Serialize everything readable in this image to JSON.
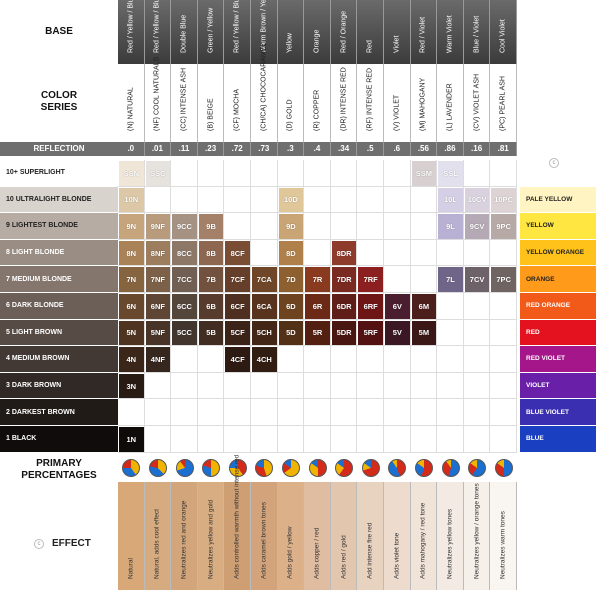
{
  "labels": {
    "base": "BASE",
    "color_series": "COLOR\nSERIES",
    "reflection": "REFLECTION",
    "primary": "PRIMARY\nPERCENTAGES",
    "effect": "EFFECT"
  },
  "bases": [
    "Red / Yellow / Blue",
    "Red / Yellow / Blue + Blue",
    "Double Blue",
    "Green / Yellow",
    "Red / Yellow / Blue",
    "Warm Brown / Yellow",
    "Yellow",
    "Orange",
    "Red / Orange",
    "Red",
    "Violet",
    "Red / Violet",
    "Warm Violet",
    "Blue / Violet",
    "Cool Violet"
  ],
  "series": [
    "(N) NATURAL",
    "(NF) COOL NATURALS",
    "(CC) INTENSE ASH",
    "(B) BEIGE",
    "(CF) MOCHA",
    "(CH/CA) CHOCOCARAMEL",
    "(D) GOLD",
    "(R) COPPER",
    "(DR) INTENSE RED",
    "(RF) INTENSE RED",
    "(V) VIOLET",
    "(M) MAHOGANY",
    "(L) LAVENDER",
    "(CV) VIOLET ASH",
    "(PC) PEARL ASH"
  ],
  "reflection": [
    ".0",
    ".01",
    ".11",
    ".23",
    ".72",
    ".73",
    ".3",
    ".4",
    ".34",
    ".5",
    ".6",
    ".56",
    ".86",
    ".16",
    ".81"
  ],
  "levels": [
    "10+ SUPERLIGHT",
    "10 ULTRALIGHT BLONDE",
    "9  LIGHTEST BLONDE",
    "8  LIGHT BLONDE",
    "7  MEDIUM BLONDE",
    "6  DARK BLONDE",
    "5  LIGHT BROWN",
    "4  MEDIUM BROWN",
    "3  DARK BROWN",
    "2  DARKEST BROWN",
    "1  BLACK"
  ],
  "level_colors": [
    "#ffffff",
    "#d9d3cd",
    "#b7aca3",
    "#9a8d83",
    "#84766d",
    "#6c5f57",
    "#574b45",
    "#433934",
    "#312925",
    "#211b18",
    "#0f0c0b"
  ],
  "undertones": [
    {
      "label": "PALE YELLOW",
      "color": "#fff4c2"
    },
    {
      "label": "YELLOW",
      "color": "#ffe640"
    },
    {
      "label": "YELLOW ORANGE",
      "color": "#ffc21a"
    },
    {
      "label": "ORANGE",
      "color": "#ff9a1a"
    },
    {
      "label": "RED ORANGE",
      "color": "#f25a1a"
    },
    {
      "label": "RED",
      "color": "#e3121e"
    },
    {
      "label": "RED VIOLET",
      "color": "#a5168a"
    },
    {
      "label": "VIOLET",
      "color": "#6a1fa8"
    },
    {
      "label": "BLUE VIOLET",
      "color": "#3a2fb0"
    },
    {
      "label": "BLUE",
      "color": "#1a3fc0"
    }
  ],
  "swatches": [
    {
      "row": 0,
      "col": 0,
      "label": "SSN",
      "color": "#efe6d7"
    },
    {
      "row": 0,
      "col": 1,
      "label": "SSC",
      "color": "#e6e2de"
    },
    {
      "row": 0,
      "col": 11,
      "label": "SSM",
      "color": "#d8cfd0"
    },
    {
      "row": 0,
      "col": 12,
      "label": "SSL",
      "color": "#e3e0ee"
    },
    {
      "row": 1,
      "col": 0,
      "label": "10N",
      "color": "#dcc7a6"
    },
    {
      "row": 1,
      "col": 6,
      "label": "10D",
      "color": "#e0c79a"
    },
    {
      "row": 1,
      "col": 12,
      "label": "10L",
      "color": "#d4cfe4"
    },
    {
      "row": 1,
      "col": 13,
      "label": "10CV",
      "color": "#d9d2de"
    },
    {
      "row": 1,
      "col": 14,
      "label": "10PC",
      "color": "#ddd3d4"
    },
    {
      "row": 2,
      "col": 0,
      "label": "9N",
      "color": "#c7a57c"
    },
    {
      "row": 2,
      "col": 1,
      "label": "9NF",
      "color": "#b79b7c"
    },
    {
      "row": 2,
      "col": 2,
      "label": "9CC",
      "color": "#a59283"
    },
    {
      "row": 2,
      "col": 3,
      "label": "9B",
      "color": "#a48068"
    },
    {
      "row": 2,
      "col": 6,
      "label": "9D",
      "color": "#c9a474"
    },
    {
      "row": 2,
      "col": 12,
      "label": "9L",
      "color": "#b9b1d4"
    },
    {
      "row": 2,
      "col": 13,
      "label": "9CV",
      "color": "#b4a9b4"
    },
    {
      "row": 2,
      "col": 14,
      "label": "9PC",
      "color": "#b7a9a6"
    },
    {
      "row": 3,
      "col": 0,
      "label": "8N",
      "color": "#a98257"
    },
    {
      "row": 3,
      "col": 1,
      "label": "8NF",
      "color": "#9c7d5e"
    },
    {
      "row": 3,
      "col": 2,
      "label": "8CC",
      "color": "#8d7868"
    },
    {
      "row": 3,
      "col": 3,
      "label": "8B",
      "color": "#8d6750"
    },
    {
      "row": 3,
      "col": 4,
      "label": "8CF",
      "color": "#7a4e35"
    },
    {
      "row": 3,
      "col": 6,
      "label": "8D",
      "color": "#b0804a"
    },
    {
      "row": 3,
      "col": 8,
      "label": "8DR",
      "color": "#8f3b2b"
    },
    {
      "row": 4,
      "col": 0,
      "label": "7N",
      "color": "#86643f"
    },
    {
      "row": 4,
      "col": 1,
      "label": "7NF",
      "color": "#7c6047"
    },
    {
      "row": 4,
      "col": 2,
      "label": "7CC",
      "color": "#705f52"
    },
    {
      "row": 4,
      "col": 3,
      "label": "7B",
      "color": "#72523e"
    },
    {
      "row": 4,
      "col": 4,
      "label": "7CF",
      "color": "#663f2a"
    },
    {
      "row": 4,
      "col": 5,
      "label": "7CA",
      "color": "#704628"
    },
    {
      "row": 4,
      "col": 6,
      "label": "7D",
      "color": "#8e5f2f"
    },
    {
      "row": 4,
      "col": 7,
      "label": "7R",
      "color": "#8a3a1e"
    },
    {
      "row": 4,
      "col": 8,
      "label": "7DR",
      "color": "#7b2a21"
    },
    {
      "row": 4,
      "col": 9,
      "label": "7RF",
      "color": "#8c1f1f"
    },
    {
      "row": 4,
      "col": 12,
      "label": "7L",
      "color": "#6f6589"
    },
    {
      "row": 4,
      "col": 13,
      "label": "7CV",
      "color": "#6e6269"
    },
    {
      "row": 4,
      "col": 14,
      "label": "7PC",
      "color": "#6f6462"
    },
    {
      "row": 5,
      "col": 0,
      "label": "6N",
      "color": "#68492d"
    },
    {
      "row": 5,
      "col": 1,
      "label": "6NF",
      "color": "#5f4634"
    },
    {
      "row": 5,
      "col": 2,
      "label": "6CC",
      "color": "#55463c"
    },
    {
      "row": 5,
      "col": 3,
      "label": "6B",
      "color": "#573c2d"
    },
    {
      "row": 5,
      "col": 4,
      "label": "6CF",
      "color": "#4f2f1f"
    },
    {
      "row": 5,
      "col": 5,
      "label": "6CA",
      "color": "#58341e"
    },
    {
      "row": 5,
      "col": 6,
      "label": "6D",
      "color": "#6d4320"
    },
    {
      "row": 5,
      "col": 7,
      "label": "6R",
      "color": "#6c2a16"
    },
    {
      "row": 5,
      "col": 8,
      "label": "6DR",
      "color": "#601e18"
    },
    {
      "row": 5,
      "col": 9,
      "label": "6RF",
      "color": "#6e1616"
    },
    {
      "row": 5,
      "col": 10,
      "label": "6V",
      "color": "#4a1e2e"
    },
    {
      "row": 5,
      "col": 11,
      "label": "6M",
      "color": "#4d1f1c"
    },
    {
      "row": 6,
      "col": 0,
      "label": "5N",
      "color": "#4f3521"
    },
    {
      "row": 6,
      "col": 1,
      "label": "5NF",
      "color": "#493528"
    },
    {
      "row": 6,
      "col": 2,
      "label": "5CC",
      "color": "#41352e"
    },
    {
      "row": 6,
      "col": 3,
      "label": "5B",
      "color": "#422d22"
    },
    {
      "row": 6,
      "col": 4,
      "label": "5CF",
      "color": "#3c2318"
    },
    {
      "row": 6,
      "col": 5,
      "label": "5CH",
      "color": "#432616"
    },
    {
      "row": 6,
      "col": 6,
      "label": "5D",
      "color": "#523117"
    },
    {
      "row": 6,
      "col": 7,
      "label": "5R",
      "color": "#521f11"
    },
    {
      "row": 6,
      "col": 8,
      "label": "5DR",
      "color": "#4a1612"
    },
    {
      "row": 6,
      "col": 9,
      "label": "5RF",
      "color": "#531111"
    },
    {
      "row": 6,
      "col": 10,
      "label": "5V",
      "color": "#3a1723"
    },
    {
      "row": 6,
      "col": 11,
      "label": "5M",
      "color": "#3b1715"
    },
    {
      "row": 7,
      "col": 0,
      "label": "4N",
      "color": "#3a271a"
    },
    {
      "row": 7,
      "col": 1,
      "label": "4NF",
      "color": "#35271e"
    },
    {
      "row": 7,
      "col": 4,
      "label": "4CF",
      "color": "#2d1a12"
    },
    {
      "row": 7,
      "col": 5,
      "label": "4CH",
      "color": "#321d12"
    },
    {
      "row": 8,
      "col": 0,
      "label": "3N",
      "color": "#271b13"
    },
    {
      "row": 10,
      "col": 0,
      "label": "1N",
      "color": "#0e0b09"
    }
  ],
  "pies": [
    [
      [
        "#f0b400",
        40
      ],
      [
        "#1b6fd1",
        35
      ],
      [
        "#d42a1a",
        25
      ]
    ],
    [
      [
        "#f0b400",
        38
      ],
      [
        "#1b6fd1",
        40
      ],
      [
        "#d42a1a",
        22
      ]
    ],
    [
      [
        "#1b6fd1",
        70
      ],
      [
        "#f0b400",
        20
      ],
      [
        "#d42a1a",
        10
      ]
    ],
    [
      [
        "#f0b400",
        50
      ],
      [
        "#1b6fd1",
        30
      ],
      [
        "#d42a1a",
        20
      ]
    ],
    [
      [
        "#d42a1a",
        40
      ],
      [
        "#f0b400",
        35
      ],
      [
        "#1b6fd1",
        25
      ]
    ],
    [
      [
        "#f0b400",
        45
      ],
      [
        "#d42a1a",
        35
      ],
      [
        "#1b6fd1",
        20
      ]
    ],
    [
      [
        "#f0b400",
        65
      ],
      [
        "#d42a1a",
        20
      ],
      [
        "#1b6fd1",
        15
      ]
    ],
    [
      [
        "#d42a1a",
        50
      ],
      [
        "#f0b400",
        35
      ],
      [
        "#1b6fd1",
        15
      ]
    ],
    [
      [
        "#d42a1a",
        60
      ],
      [
        "#f0b400",
        25
      ],
      [
        "#1b6fd1",
        15
      ]
    ],
    [
      [
        "#d42a1a",
        70
      ],
      [
        "#f0b400",
        15
      ],
      [
        "#1b6fd1",
        15
      ]
    ],
    [
      [
        "#d42a1a",
        45
      ],
      [
        "#1b6fd1",
        45
      ],
      [
        "#f0b400",
        10
      ]
    ],
    [
      [
        "#d42a1a",
        55
      ],
      [
        "#1b6fd1",
        30
      ],
      [
        "#f0b400",
        15
      ]
    ],
    [
      [
        "#1b6fd1",
        55
      ],
      [
        "#d42a1a",
        35
      ],
      [
        "#f0b400",
        10
      ]
    ],
    [
      [
        "#1b6fd1",
        60
      ],
      [
        "#d42a1a",
        25
      ],
      [
        "#f0b400",
        15
      ]
    ],
    [
      [
        "#1b6fd1",
        50
      ],
      [
        "#d42a1a",
        35
      ],
      [
        "#f0b400",
        15
      ]
    ]
  ],
  "effects": [
    "Natural",
    "Natural, adds cool effect",
    "Neutralizes red and orange",
    "Neutralizes yellow and gold",
    "Adds controlled warmth without intense red",
    "Adds caramel brown tones",
    "Adds gold / yellow",
    "Adds copper / red",
    "Adds red / gold",
    "Add intense fire red",
    "Adds violet tone",
    "Adds mahogany / red tone",
    "Neutralizes yellow tones",
    "Neutralizes yellow / orange tones",
    "Neutralizes warm tones"
  ],
  "effect_colors": [
    "#d9a878",
    "#d6ab80",
    "#d2a57a",
    "#d8ad82",
    "#cf9f74",
    "#d3a47b",
    "#dcb089",
    "#e0bca0",
    "#e3c6ae",
    "#e8d2c0",
    "#eddbcd",
    "#f0e3d7",
    "#f3ebe3",
    "#f6f0ea",
    "#f9f5f1"
  ]
}
